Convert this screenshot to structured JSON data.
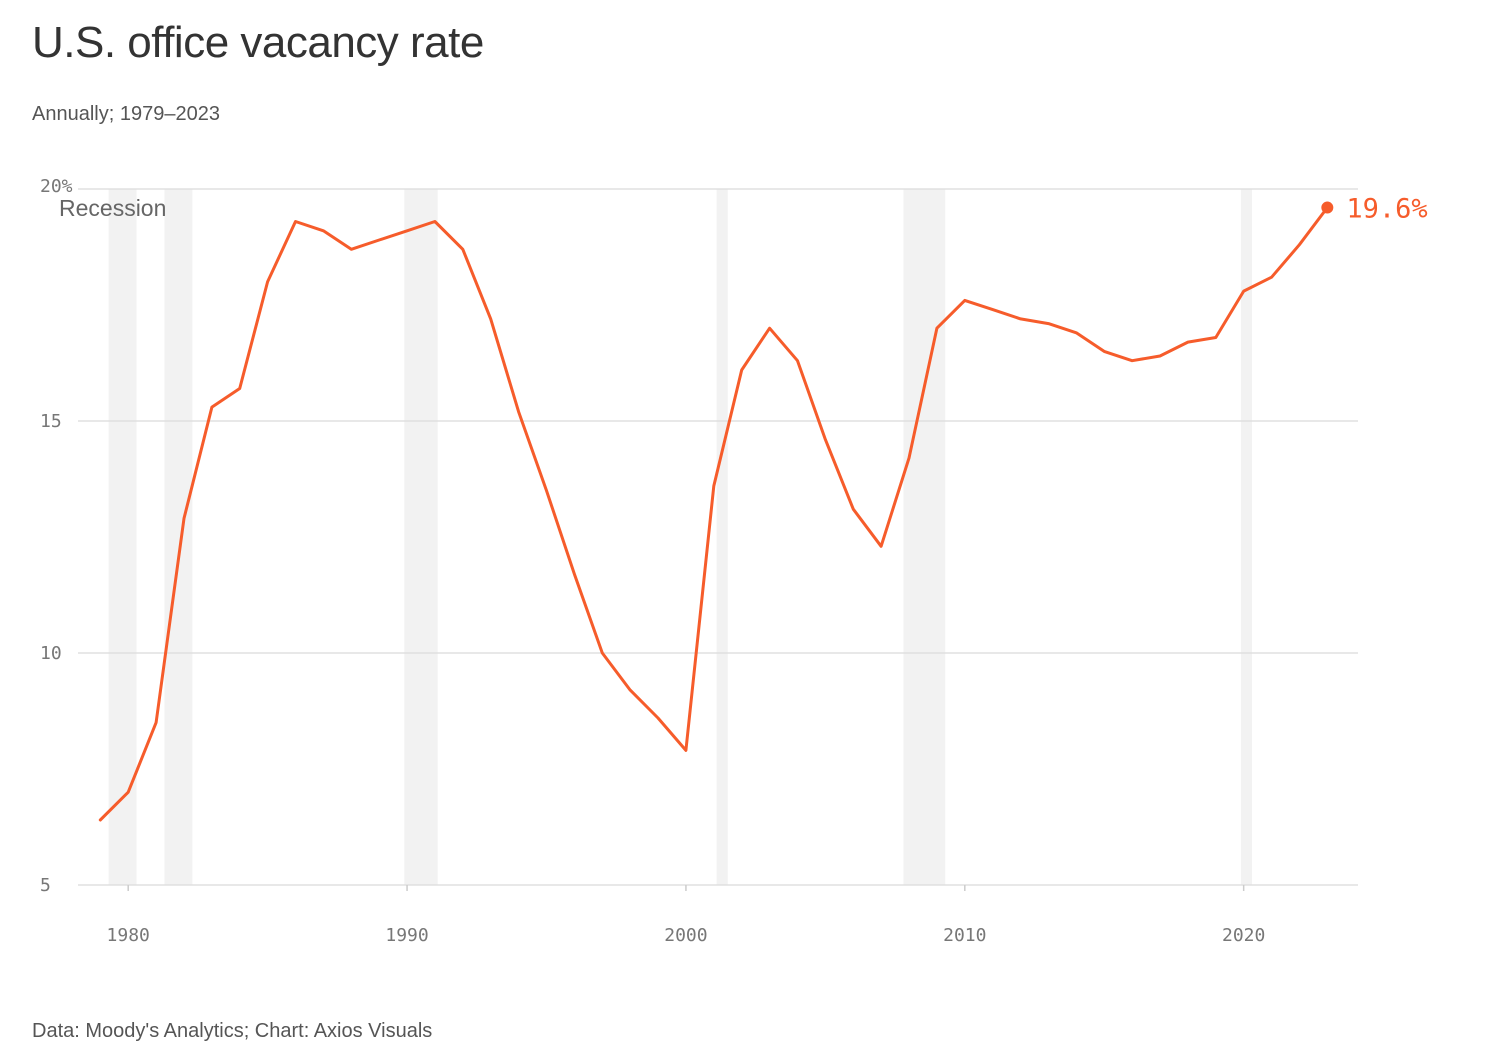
{
  "header": {
    "title": "U.S. office vacancy rate",
    "subtitle": "Annually; 1979–2023"
  },
  "footer": {
    "source": "Data: Moody's Analytics; Chart: Axios Visuals"
  },
  "colors": {
    "line": "#f65c2b",
    "recession": "#f2f2f2",
    "grid": "#e0e0e0"
  },
  "chart_data": {
    "type": "line",
    "title": "U.S. office vacancy rate",
    "subtitle": "Annually; 1979–2023",
    "xlabel": "",
    "ylabel": "",
    "xlim": [
      1978.2,
      2024.1
    ],
    "ylim": [
      5,
      20
    ],
    "x_ticks": [
      1980,
      1990,
      2000,
      2010,
      2020
    ],
    "x_tick_labels": [
      "1980",
      "1990",
      "2000",
      "2010",
      "2020"
    ],
    "y_ticks": [
      5,
      10,
      15,
      20
    ],
    "y_tick_labels": [
      "5",
      "10",
      "15",
      "20%"
    ],
    "grid": true,
    "legend": "none",
    "recession_label": "Recession",
    "recessions": [
      [
        1979.3,
        1980.3
      ],
      [
        1981.3,
        1982.3
      ],
      [
        1989.9,
        1991.1
      ],
      [
        2001.1,
        2001.5
      ],
      [
        2007.8,
        2009.3
      ],
      [
        2019.9,
        2020.3
      ]
    ],
    "end_label": "19.6%",
    "series": [
      {
        "x": [
          1979,
          1980,
          1981,
          1982,
          1983,
          1984,
          1985,
          1986,
          1987,
          1988,
          1989,
          1990,
          1991,
          1992,
          1993,
          1994,
          1995,
          1996,
          1997,
          1998,
          1999,
          2000,
          2001,
          2002,
          2003,
          2004,
          2005,
          2006,
          2007,
          2008,
          2009,
          2010,
          2011,
          2012,
          2013,
          2014,
          2015,
          2016,
          2017,
          2018,
          2019,
          2020,
          2021,
          2022,
          2023
        ],
        "values": [
          6.4,
          7.0,
          8.5,
          12.9,
          15.3,
          15.7,
          18.0,
          19.3,
          19.1,
          18.7,
          18.9,
          19.1,
          19.3,
          18.7,
          17.2,
          15.2,
          13.5,
          11.7,
          10.0,
          9.2,
          8.6,
          7.9,
          13.6,
          16.1,
          17.0,
          16.3,
          14.6,
          13.1,
          12.3,
          14.2,
          17.0,
          17.6,
          17.4,
          17.2,
          17.1,
          16.9,
          16.5,
          16.3,
          16.4,
          16.7,
          16.8,
          17.8,
          18.1,
          18.8,
          19.6
        ]
      }
    ]
  }
}
